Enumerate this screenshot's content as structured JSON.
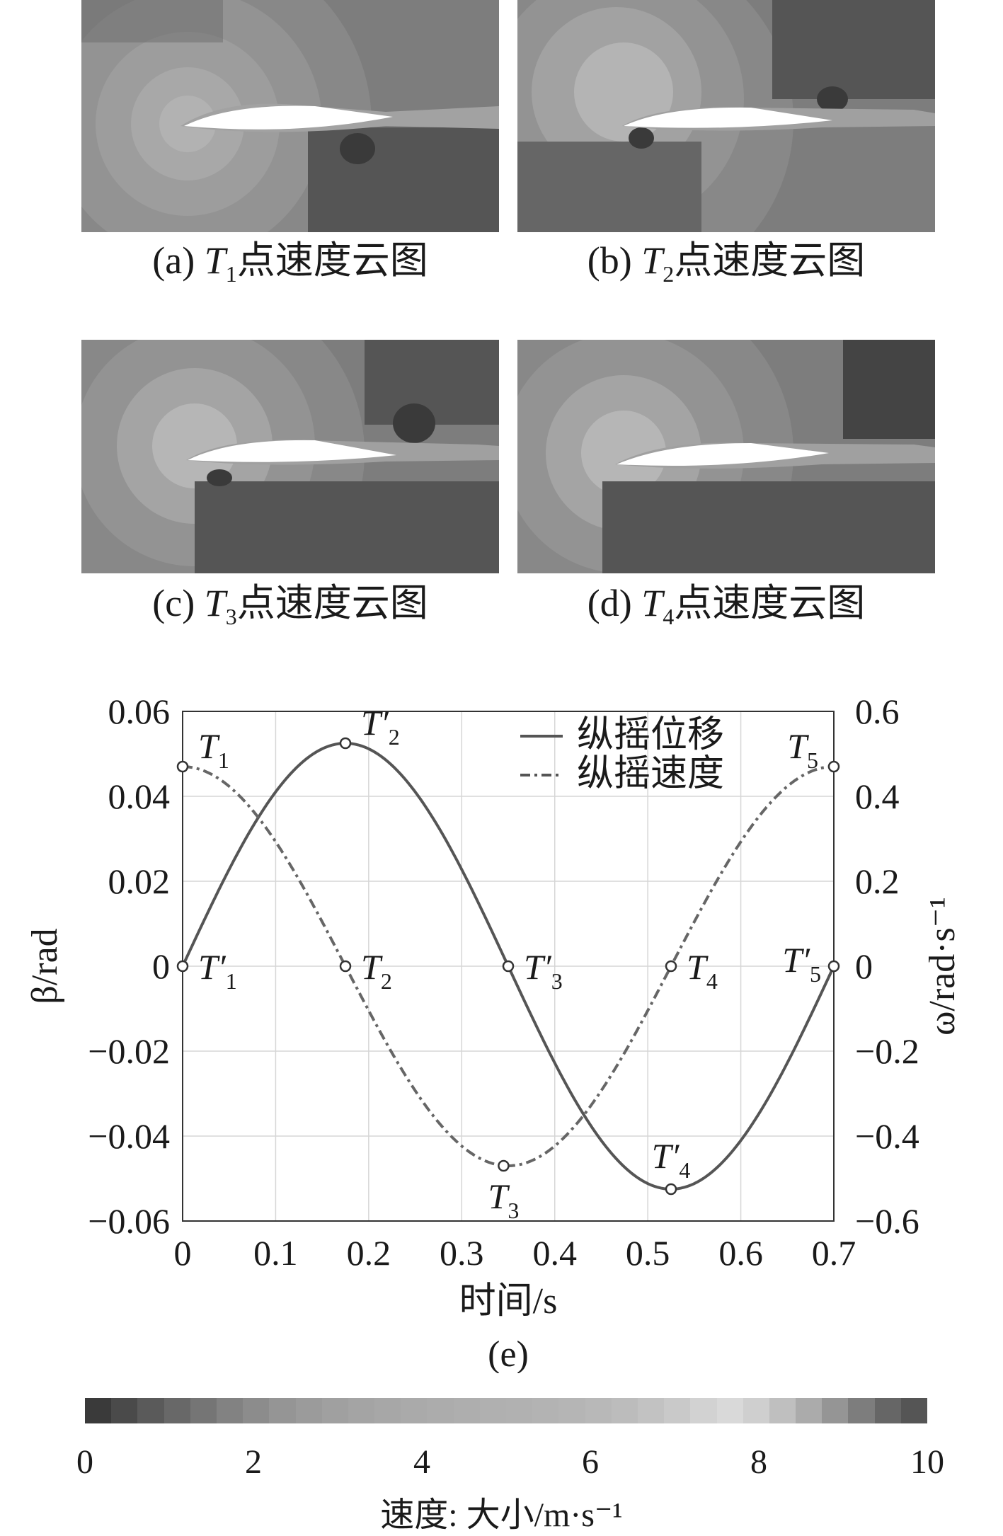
{
  "panels": [
    {
      "id": "a",
      "label": "(a)",
      "t": "T",
      "sub": "1",
      "suffix": "点速度云图"
    },
    {
      "id": "b",
      "label": "(b)",
      "t": "T",
      "sub": "2",
      "suffix": "点速度云图"
    },
    {
      "id": "c",
      "label": "(c)",
      "t": "T",
      "sub": "3",
      "suffix": "点速度云图"
    },
    {
      "id": "d",
      "label": "(d)",
      "t": "T",
      "sub": "4",
      "suffix": "点速度云图"
    }
  ],
  "chart_data": {
    "type": "line",
    "panel_label": "(e)",
    "xlabel": "时间/s",
    "ylabel_left": "β/rad",
    "ylabel_right": "ω/rad·s⁻¹",
    "xlim": [
      0,
      0.7
    ],
    "ylim_left": [
      -0.06,
      0.06
    ],
    "ylim_right": [
      -0.6,
      0.6
    ],
    "x_ticks": [
      "0",
      "0.1",
      "0.2",
      "0.3",
      "0.4",
      "0.5",
      "0.6",
      "0.7"
    ],
    "y_left_ticks": [
      "0.06",
      "0.04",
      "0.02",
      "0",
      "−0.02",
      "−0.04",
      "−0.06"
    ],
    "y_right_ticks": [
      "0.6",
      "0.4",
      "0.2",
      "0",
      "−0.2",
      "−0.4",
      "−0.6"
    ],
    "grid": true,
    "legend_position": "top-right",
    "series": [
      {
        "name": "纵摇位移",
        "axis": "left",
        "style": "solid",
        "period": 0.7,
        "amplitude": 0.0525,
        "phase": "sin",
        "x": [
          0,
          0.05,
          0.1,
          0.175,
          0.25,
          0.3,
          0.35,
          0.4,
          0.45,
          0.525,
          0.6,
          0.65,
          0.7
        ],
        "y": [
          0,
          0.0227,
          0.041,
          0.0525,
          0.041,
          0.0227,
          0,
          -0.0227,
          -0.041,
          -0.0525,
          -0.041,
          -0.0227,
          0
        ]
      },
      {
        "name": "纵摇速度",
        "axis": "right",
        "style": "dash-dot",
        "period": 0.7,
        "amplitude": 0.47,
        "phase": "cos",
        "x": [
          0,
          0.05,
          0.1,
          0.175,
          0.25,
          0.3,
          0.35,
          0.4,
          0.45,
          0.525,
          0.6,
          0.65,
          0.7
        ],
        "y": [
          0.47,
          0.423,
          0.293,
          0,
          -0.293,
          -0.423,
          -0.47,
          -0.423,
          -0.293,
          0,
          0.293,
          0.423,
          0.47
        ]
      }
    ],
    "markers": [
      {
        "x": 0,
        "axis": "right",
        "y": 0.47,
        "label": "T",
        "prime": false,
        "sub": "1",
        "anchor": "upper-right"
      },
      {
        "x": 0.175,
        "axis": "right",
        "y": 0,
        "label": "T",
        "prime": false,
        "sub": "2",
        "anchor": "right"
      },
      {
        "x": 0.345,
        "axis": "right",
        "y": -0.47,
        "label": "T",
        "prime": false,
        "sub": "3",
        "anchor": "below"
      },
      {
        "x": 0.525,
        "axis": "right",
        "y": 0,
        "label": "T",
        "prime": false,
        "sub": "4",
        "anchor": "right"
      },
      {
        "x": 0.7,
        "axis": "right",
        "y": 0.47,
        "label": "T",
        "prime": false,
        "sub": "5",
        "anchor": "upper-left"
      },
      {
        "x": 0,
        "axis": "left",
        "y": 0,
        "label": "T′",
        "prime": true,
        "sub": "1",
        "anchor": "right"
      },
      {
        "x": 0.175,
        "axis": "left",
        "y": 0.0525,
        "label": "T′",
        "prime": true,
        "sub": "2",
        "anchor": "upper-right"
      },
      {
        "x": 0.35,
        "axis": "left",
        "y": 0,
        "label": "T′",
        "prime": true,
        "sub": "3",
        "anchor": "right"
      },
      {
        "x": 0.525,
        "axis": "left",
        "y": -0.0525,
        "label": "T′",
        "prime": true,
        "sub": "4",
        "anchor": "above"
      },
      {
        "x": 0.7,
        "axis": "left",
        "y": 0,
        "label": "T′",
        "prime": true,
        "sub": "5",
        "anchor": "left"
      }
    ]
  },
  "colorbar": {
    "ticks": [
      "0",
      "2",
      "4",
      "6",
      "8",
      "10"
    ],
    "label": "速度: 大小/m·s⁻¹",
    "colors": [
      "#3a3a3a",
      "#4a4a4a",
      "#5a5a5a",
      "#686868",
      "#757575",
      "#828282",
      "#8c8c8c",
      "#959595",
      "#9b9b9b",
      "#a0a0a0",
      "#a4a4a4",
      "#a7a7a7",
      "#aaaaaa",
      "#acacac",
      "#aeaeae",
      "#b0b0b0",
      "#b1b1b1",
      "#b3b3b3",
      "#b5b5b5",
      "#b8b8b8",
      "#bcbcbc",
      "#c2c2c2",
      "#c9c9c9",
      "#d2d2d2",
      "#d9d9d9",
      "#cfcfcf",
      "#bfbfbf",
      "#ababab",
      "#959595",
      "#7d7d7d",
      "#666666",
      "#555555"
    ]
  }
}
